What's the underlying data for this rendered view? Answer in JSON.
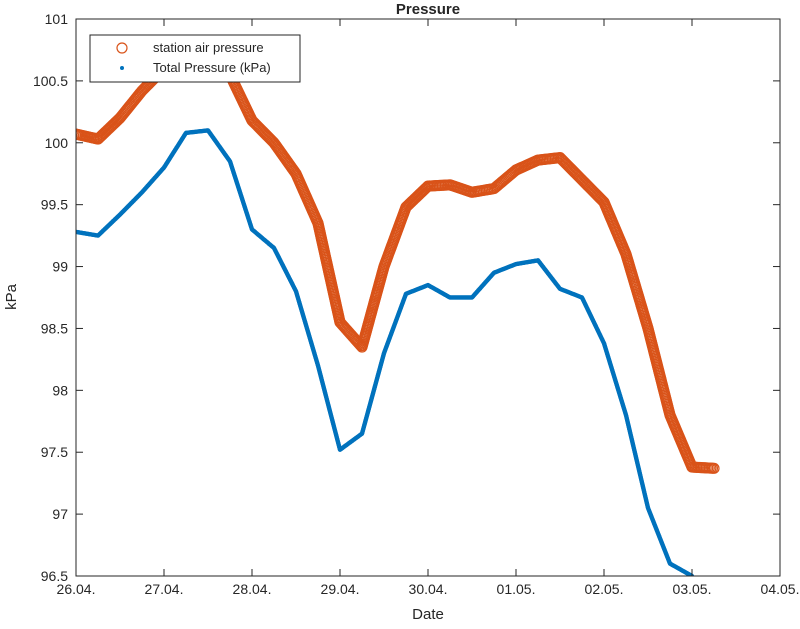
{
  "chart_data": {
    "type": "scatter",
    "title": "Pressure",
    "xlabel": "Date",
    "ylabel": "kPa",
    "ylim": [
      96.5,
      101
    ],
    "xlim": [
      "26.04.",
      "04.05."
    ],
    "x_tick_labels": [
      "26.04.",
      "27.04.",
      "28.04.",
      "29.04.",
      "30.04.",
      "01.05.",
      "02.05.",
      "03.05.",
      "04.05."
    ],
    "y_tick_labels": [
      "96.5",
      "97",
      "97.5",
      "98",
      "98.5",
      "99",
      "99.5",
      "100",
      "100.5",
      "101"
    ],
    "grid": false,
    "legend_position": "top-left",
    "series": [
      {
        "name": "station air pressure",
        "marker": "open-circle",
        "color": "#D95319",
        "x": [
          "26.04. 00:00",
          "26.04. 06:00",
          "26.04. 12:00",
          "26.04. 18:00",
          "27.04. 00:00",
          "27.04. 06:00",
          "27.04. 12:00",
          "27.04. 18:00",
          "28.04. 00:00",
          "28.04. 06:00",
          "28.04. 12:00",
          "28.04. 18:00",
          "29.04. 00:00",
          "29.04. 06:00",
          "29.04. 12:00",
          "29.04. 18:00",
          "30.04. 00:00",
          "30.04. 06:00",
          "30.04. 12:00",
          "30.04. 18:00",
          "01.05. 00:00",
          "01.05. 06:00",
          "01.05. 12:00",
          "01.05. 18:00",
          "02.05. 00:00",
          "02.05. 06:00",
          "02.05. 12:00",
          "02.05. 18:00",
          "03.05. 00:00",
          "03.05. 06:00"
        ],
        "values": [
          100.07,
          100.03,
          100.2,
          100.42,
          100.6,
          100.75,
          100.83,
          100.55,
          100.18,
          100.0,
          99.75,
          99.35,
          98.55,
          98.35,
          99.0,
          99.48,
          99.65,
          99.66,
          99.6,
          99.63,
          99.78,
          99.86,
          99.88,
          99.7,
          99.52,
          99.1,
          98.5,
          97.8,
          97.38,
          97.37
        ]
      },
      {
        "name": "Total Pressure (kPa)",
        "marker": "dot",
        "color": "#0072BD",
        "x": [
          "26.04. 00:00",
          "26.04. 06:00",
          "26.04. 12:00",
          "26.04. 18:00",
          "27.04. 00:00",
          "27.04. 06:00",
          "27.04. 12:00",
          "27.04. 18:00",
          "28.04. 00:00",
          "28.04. 06:00",
          "28.04. 12:00",
          "28.04. 18:00",
          "29.04. 00:00",
          "29.04. 06:00",
          "29.04. 12:00",
          "29.04. 18:00",
          "30.04. 00:00",
          "30.04. 06:00",
          "30.04. 12:00",
          "30.04. 18:00",
          "01.05. 00:00",
          "01.05. 06:00",
          "01.05. 12:00",
          "01.05. 18:00",
          "02.05. 00:00",
          "02.05. 06:00",
          "02.05. 12:00",
          "02.05. 18:00",
          "03.05. 00:00"
        ],
        "values": [
          99.28,
          99.25,
          99.42,
          99.6,
          99.8,
          100.08,
          100.1,
          99.85,
          99.3,
          99.15,
          98.8,
          98.2,
          97.52,
          97.65,
          98.3,
          98.78,
          98.85,
          98.75,
          98.75,
          98.95,
          99.02,
          99.05,
          98.82,
          98.75,
          98.38,
          97.8,
          97.05,
          96.6,
          96.5
        ]
      }
    ]
  }
}
